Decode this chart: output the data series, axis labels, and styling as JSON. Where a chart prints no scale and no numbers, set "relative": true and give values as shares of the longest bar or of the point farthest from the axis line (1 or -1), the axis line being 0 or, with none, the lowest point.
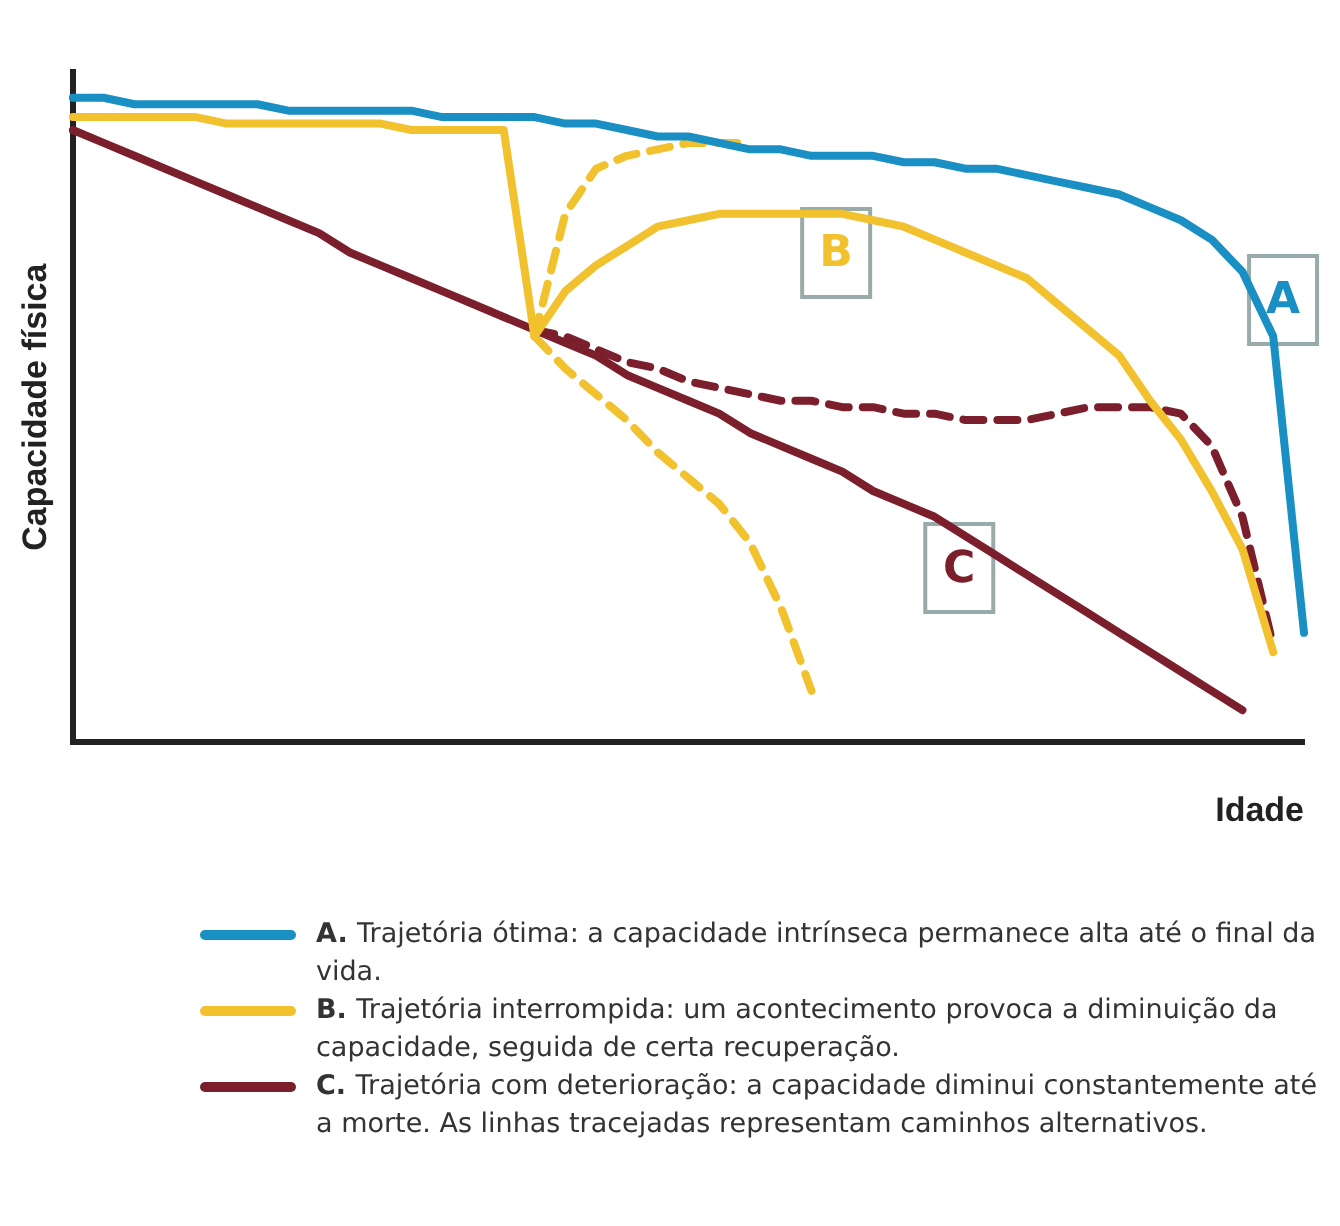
{
  "chart_data": {
    "type": "line",
    "relative": true,
    "xlabel": "Idade",
    "ylabel": "Capacidade física",
    "grid": false,
    "legend": "bottom",
    "marker": "none",
    "categories": [
      null,
      null,
      null,
      null,
      null,
      null,
      null,
      null,
      null,
      null,
      null,
      null,
      null,
      null,
      null,
      null,
      null,
      null,
      null,
      null,
      null,
      null,
      null,
      null,
      null,
      null,
      null,
      null,
      null,
      null,
      null,
      null,
      null,
      null,
      null,
      null,
      null,
      null,
      null,
      null,
      null
    ],
    "series": [
      {
        "name": "A. Trajetória ótima: a capacidade intrínseca permanece alta até o final da vida.",
        "color": "#1a8fc4",
        "values": [
          1,
          1,
          0.99,
          0.99,
          0.99,
          0.99,
          0.99,
          0.98,
          0.98,
          0.98,
          0.98,
          0.98,
          0.97,
          0.97,
          0.97,
          0.97,
          0.96,
          0.96,
          0.95,
          0.94,
          0.94,
          0.93,
          0.92,
          0.92,
          0.91,
          0.91,
          0.91,
          0.9,
          0.9,
          0.89,
          0.89,
          0.88,
          0.87,
          0.86,
          0.85,
          0.83,
          0.81,
          0.78,
          0.73,
          0.63,
          0.17
        ]
      },
      {
        "name": "B. Trajetória interrompida: um acontecimento provoca a diminuição da capacidade, seguida de certa recuperação.",
        "color": "#f2c12e",
        "values": [
          0.97,
          0.97,
          0.97,
          0.97,
          0.97,
          0.96,
          0.96,
          0.96,
          0.96,
          0.96,
          0.96,
          0.95,
          0.95,
          0.95,
          0.95,
          0.63,
          0.7,
          0.74,
          0.77,
          0.8,
          0.81,
          0.82,
          0.82,
          0.82,
          0.82,
          0.82,
          0.81,
          0.8,
          0.78,
          0.76,
          0.74,
          0.72,
          0.68,
          0.64,
          0.6,
          0.53,
          0.47,
          0.39,
          0.3,
          0.14,
          null
        ]
      },
      {
        "name": "C. Trajetória com deterioração: a capacidade diminui constantemente até a morte. As linhas tracejadas representam caminhos alternativos.",
        "color": "#7a1f2b",
        "values": [
          0.95,
          0.93,
          0.91,
          0.89,
          0.87,
          0.85,
          0.83,
          0.81,
          0.79,
          0.76,
          0.74,
          0.72,
          0.7,
          0.68,
          0.66,
          0.64,
          0.62,
          0.6,
          0.57,
          0.55,
          0.53,
          0.51,
          0.48,
          0.46,
          0.44,
          0.42,
          0.39,
          0.37,
          0.35,
          0.32,
          0.29,
          0.26,
          0.23,
          0.2,
          0.17,
          0.14,
          0.11,
          0.08,
          0.05,
          null,
          null
        ]
      },
      {
        "color": "#f2c12e",
        "line_style": "dashed",
        "values": [
          null,
          null,
          null,
          null,
          null,
          null,
          null,
          null,
          null,
          null,
          null,
          null,
          null,
          null,
          null,
          0.63,
          0.82,
          0.89,
          0.91,
          0.92,
          0.93,
          0.93,
          0.93,
          null,
          null,
          null,
          null,
          null,
          null,
          null,
          null,
          null,
          null,
          null,
          null,
          null,
          null,
          null,
          null,
          null,
          null
        ]
      },
      {
        "color": "#f2c12e",
        "line_style": "dashed",
        "values": [
          null,
          null,
          null,
          null,
          null,
          null,
          null,
          null,
          null,
          null,
          null,
          null,
          null,
          null,
          null,
          0.63,
          0.58,
          0.54,
          0.5,
          0.45,
          0.41,
          0.37,
          0.31,
          0.21,
          0.08,
          null,
          null,
          null,
          null,
          null,
          null,
          null,
          null,
          null,
          null,
          null,
          null,
          null,
          null,
          null,
          null
        ]
      },
      {
        "color": "#7a1f2b",
        "line_style": "dashed",
        "values": [
          null,
          null,
          null,
          null,
          null,
          null,
          null,
          null,
          null,
          null,
          null,
          null,
          null,
          null,
          null,
          0.64,
          0.63,
          0.61,
          0.59,
          0.58,
          0.56,
          0.55,
          0.54,
          0.53,
          0.53,
          0.52,
          0.52,
          0.51,
          0.51,
          0.5,
          0.5,
          0.5,
          0.51,
          0.52,
          0.52,
          0.52,
          0.51,
          0.46,
          0.35,
          0.15,
          null
        ]
      }
    ],
    "annotations": [
      "A",
      "B",
      "C"
    ]
  }
}
